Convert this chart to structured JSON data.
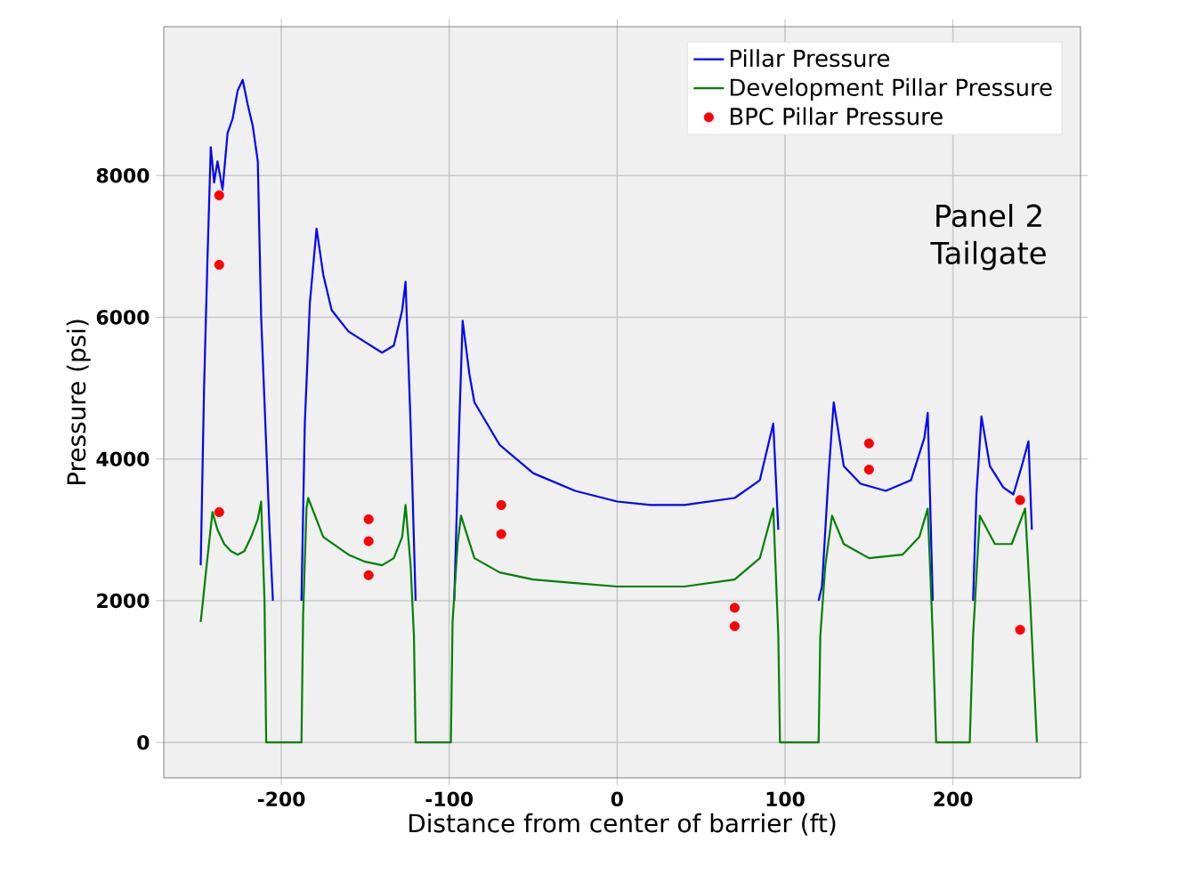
{
  "chart_data": {
    "type": "line",
    "xlabel": "Distance from center of barrier (ft)",
    "ylabel": "Pressure (psi)",
    "xlim": [
      -270,
      276
    ],
    "ylim": [
      -500,
      10100
    ],
    "xticks": [
      -200,
      -100,
      0,
      100,
      200
    ],
    "yticks": [
      0,
      2000,
      4000,
      6000,
      8000
    ],
    "grid": true,
    "legend": "top right",
    "annotations": [
      "Panel 2 Tailgate"
    ],
    "series": [
      {
        "name": "Pillar Pressure",
        "color": "#0000ff",
        "marker": "none",
        "x": [
          -248,
          -246,
          -244,
          -242,
          -240,
          -238,
          -235,
          -232,
          -229,
          -226,
          -223,
          -220,
          -217,
          -214,
          -212,
          -210,
          -207,
          -205,
          -200,
          -188,
          -186,
          -183,
          -179,
          -175,
          -170,
          -160,
          -150,
          -140,
          -133,
          -128,
          -126,
          -123,
          -120,
          -110,
          -97,
          -94,
          -92,
          -88,
          -85,
          -70,
          -50,
          -25,
          0,
          20,
          40,
          70,
          85,
          93,
          96,
          110,
          120,
          122,
          126,
          129,
          135,
          145,
          160,
          175,
          183,
          185,
          188,
          200,
          212,
          214,
          217,
          222,
          230,
          236,
          241,
          245,
          247
        ],
        "values": [
          2500,
          5000,
          6800,
          8400,
          7900,
          8200,
          7800,
          8600,
          8800,
          9200,
          9350,
          9000,
          8700,
          8200,
          6000,
          4800,
          3000,
          2000,
          null,
          2000,
          4500,
          6200,
          7250,
          6600,
          6100,
          5800,
          5650,
          5500,
          5600,
          6100,
          6500,
          4500,
          2000,
          null,
          2000,
          4500,
          5950,
          5200,
          4800,
          4200,
          3800,
          3550,
          3400,
          3350,
          3350,
          3450,
          3700,
          4500,
          3000,
          null,
          2000,
          2200,
          3800,
          4800,
          3900,
          3650,
          3550,
          3700,
          4300,
          4650,
          2000,
          null,
          2000,
          3500,
          4600,
          3900,
          3600,
          3500,
          3900,
          4250,
          3000
        ]
      },
      {
        "name": "Development Pillar Pressure",
        "color": "#008000",
        "marker": "none",
        "x": [
          -248,
          -244,
          -241,
          -238,
          -234,
          -230,
          -226,
          -222,
          -218,
          -214,
          -212,
          -210,
          -209,
          -188,
          -187,
          -185,
          -184,
          -175,
          -160,
          -150,
          -140,
          -133,
          -128,
          -126,
          -123,
          -121,
          -120,
          -99,
          -98,
          -95,
          -93,
          -85,
          -70,
          -50,
          -25,
          0,
          20,
          40,
          70,
          85,
          93,
          96,
          97,
          120,
          121,
          124,
          128,
          135,
          150,
          170,
          180,
          185,
          188,
          190,
          210,
          212,
          216,
          225,
          235,
          243,
          246,
          250
        ],
        "values": [
          1700,
          2600,
          3250,
          3000,
          2800,
          2700,
          2650,
          2700,
          2900,
          3150,
          3400,
          2000,
          0,
          0,
          1800,
          3300,
          3450,
          2900,
          2650,
          2550,
          2500,
          2600,
          2900,
          3350,
          2500,
          1500,
          0,
          0,
          1700,
          2800,
          3200,
          2600,
          2400,
          2300,
          2250,
          2200,
          2200,
          2200,
          2300,
          2600,
          3300,
          1500,
          0,
          0,
          1500,
          2500,
          3200,
          2800,
          2600,
          2650,
          2900,
          3300,
          1500,
          0,
          0,
          1500,
          3200,
          2800,
          2800,
          3300,
          2000,
          0
        ]
      },
      {
        "name": "BPC Pillar Pressure",
        "type": "scatter",
        "color": "#ff0000",
        "marker": "circle",
        "x": [
          -237,
          -237,
          -237,
          -148,
          -148,
          -148,
          -69,
          -69,
          70,
          70,
          150,
          150,
          240,
          240
        ],
        "values": [
          7720,
          6740,
          3250,
          3150,
          2840,
          2360,
          3350,
          2940,
          1900,
          1640,
          4220,
          3850,
          3420,
          1590
        ]
      }
    ]
  }
}
